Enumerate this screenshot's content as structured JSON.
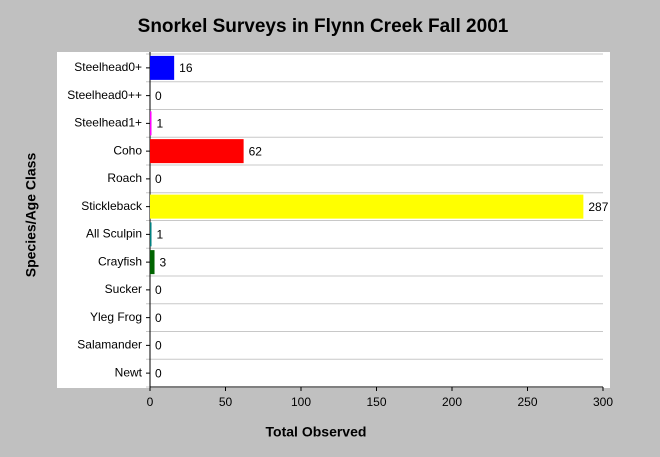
{
  "chart_data": {
    "type": "bar",
    "orientation": "horizontal",
    "title": "Snorkel Surveys in Flynn Creek Fall 2001",
    "x_label": "Total Observed",
    "y_label": "Species/Age Class",
    "categories": [
      "Steelhead0+",
      "Steelhead0++",
      "Steelhead1+",
      "Coho",
      "Roach",
      "Stickleback",
      "All Sculpin",
      "Crayfish",
      "Sucker",
      "Yleg Frog",
      "Salamander",
      "Newt"
    ],
    "values": [
      16,
      0,
      1,
      62,
      0,
      287,
      1,
      3,
      0,
      0,
      0,
      0
    ],
    "colors": [
      "#0000ff",
      "#00ffff",
      "#ff00ff",
      "#ff0000",
      "#808080",
      "#ffff00",
      "#008080",
      "#006400",
      "#800000",
      "#000080",
      "#808000",
      "#800080"
    ],
    "xlim": [
      0,
      300
    ],
    "xticks": [
      0,
      50,
      100,
      150,
      200,
      250,
      300
    ]
  }
}
